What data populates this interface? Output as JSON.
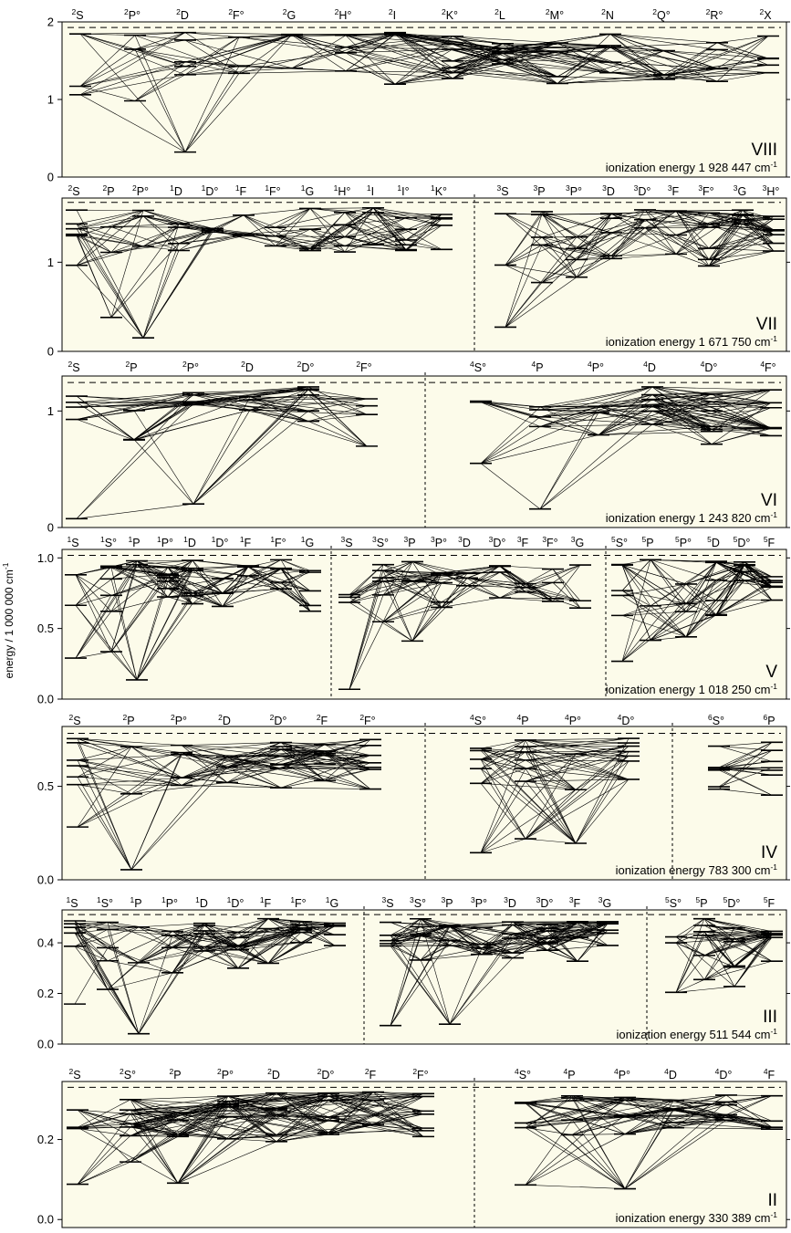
{
  "chart_data": {
    "type": "grotrian_diagram",
    "y_axis_label": "energy / 1 000 000 cm",
    "y_axis_label_sup": "-1",
    "panels": [
      {
        "ion": "VIII",
        "ionization_label": "ionization energy",
        "ionization_value": "1 928 447",
        "ionization_unit": "cm",
        "ionization_unit_sup": "-1",
        "ionization_energy": 1.928447,
        "ylim": [
          0,
          2.0
        ],
        "yticks": [
          0,
          1,
          2
        ],
        "ticklabels": [
          "0",
          "1",
          "2"
        ],
        "groups": [
          {
            "terms": [
              {
                "m": "2",
                "l": "S"
              },
              {
                "m": "2",
                "l": "P°"
              },
              {
                "m": "2",
                "l": "D"
              },
              {
                "m": "2",
                "l": "F°"
              },
              {
                "m": "2",
                "l": "G"
              },
              {
                "m": "2",
                "l": "H°"
              },
              {
                "m": "2",
                "l": "I"
              },
              {
                "m": "2",
                "l": "K°"
              },
              {
                "m": "2",
                "l": "L"
              },
              {
                "m": "2",
                "l": "M°"
              },
              {
                "m": "2",
                "l": "N"
              },
              {
                "m": "2",
                "l": "Q°"
              },
              {
                "m": "2",
                "l": "R°"
              },
              {
                "m": "2",
                "l": "X"
              }
            ]
          }
        ]
      },
      {
        "ion": "VII",
        "ionization_label": "ionization energy",
        "ionization_value": "1 671 750",
        "ionization_unit": "cm",
        "ionization_unit_sup": "-1",
        "ionization_energy": 1.67175,
        "ylim": [
          0,
          1.72
        ],
        "yticks": [
          0,
          1
        ],
        "ticklabels": [
          "0",
          "1"
        ],
        "groups": [
          {
            "terms": [
              {
                "m": "2",
                "l": "S"
              },
              {
                "m": "2",
                "l": "P"
              },
              {
                "m": "2",
                "l": "P°"
              },
              {
                "m": "1",
                "l": "D"
              },
              {
                "m": "1",
                "l": "D°"
              },
              {
                "m": "1",
                "l": "F"
              },
              {
                "m": "1",
                "l": "F°"
              },
              {
                "m": "1",
                "l": "G"
              },
              {
                "m": "1",
                "l": "H°"
              },
              {
                "m": "1",
                "l": "I"
              },
              {
                "m": "1",
                "l": "I°"
              },
              {
                "m": "1",
                "l": "K°"
              }
            ]
          },
          {
            "terms": [
              {
                "m": "3",
                "l": "S"
              },
              {
                "m": "3",
                "l": "P"
              },
              {
                "m": "3",
                "l": "P°"
              },
              {
                "m": "3",
                "l": "D"
              },
              {
                "m": "3",
                "l": "D°"
              },
              {
                "m": "3",
                "l": "F"
              },
              {
                "m": "3",
                "l": "F°"
              },
              {
                "m": "3",
                "l": "G"
              },
              {
                "m": "3",
                "l": "H°"
              }
            ]
          }
        ]
      },
      {
        "ion": "VI",
        "ionization_label": "ionization energy",
        "ionization_value": "1 243 820",
        "ionization_unit": "cm",
        "ionization_unit_sup": "-1",
        "ionization_energy": 1.24382,
        "ylim": [
          0,
          1.3
        ],
        "yticks": [
          0,
          1
        ],
        "ticklabels": [
          "0",
          "1"
        ],
        "groups": [
          {
            "terms": [
              {
                "m": "2",
                "l": "S"
              },
              {
                "m": "2",
                "l": "P"
              },
              {
                "m": "2",
                "l": "P°"
              },
              {
                "m": "2",
                "l": "D"
              },
              {
                "m": "2",
                "l": "D°"
              },
              {
                "m": "2",
                "l": "F°"
              }
            ]
          },
          {
            "terms": [
              {
                "m": "4",
                "l": "S°"
              },
              {
                "m": "4",
                "l": "P"
              },
              {
                "m": "4",
                "l": "P°"
              },
              {
                "m": "4",
                "l": "D"
              },
              {
                "m": "4",
                "l": "D°"
              },
              {
                "m": "4",
                "l": "F°"
              }
            ]
          }
        ]
      },
      {
        "ion": "V",
        "ionization_label": "ionization energy",
        "ionization_value": "1 018 250",
        "ionization_unit": "cm",
        "ionization_unit_sup": "-1",
        "ionization_energy": 1.01825,
        "ylim": [
          0,
          1.06
        ],
        "yticks": [
          0,
          0.5,
          1.0
        ],
        "ticklabels": [
          "0.0",
          "0.5",
          "1.0"
        ],
        "groups": [
          {
            "terms": [
              {
                "m": "1",
                "l": "S"
              },
              {
                "m": "1",
                "l": "S°"
              },
              {
                "m": "1",
                "l": "P"
              },
              {
                "m": "1",
                "l": "P°"
              },
              {
                "m": "1",
                "l": "D"
              },
              {
                "m": "1",
                "l": "D°"
              },
              {
                "m": "1",
                "l": "F"
              },
              {
                "m": "1",
                "l": "F°"
              },
              {
                "m": "1",
                "l": "G"
              }
            ]
          },
          {
            "terms": [
              {
                "m": "3",
                "l": "S"
              },
              {
                "m": "3",
                "l": "S°"
              },
              {
                "m": "3",
                "l": "P"
              },
              {
                "m": "3",
                "l": "P°"
              },
              {
                "m": "3",
                "l": "D"
              },
              {
                "m": "3",
                "l": "D°"
              },
              {
                "m": "3",
                "l": "F"
              },
              {
                "m": "3",
                "l": "F°"
              },
              {
                "m": "3",
                "l": "G"
              }
            ]
          },
          {
            "terms": [
              {
                "m": "5",
                "l": "S°"
              },
              {
                "m": "5",
                "l": "P"
              },
              {
                "m": "5",
                "l": "P°"
              },
              {
                "m": "5",
                "l": "D"
              },
              {
                "m": "5",
                "l": "D°"
              },
              {
                "m": "5",
                "l": "F"
              }
            ]
          }
        ]
      },
      {
        "ion": "IV",
        "ionization_label": "ionization energy",
        "ionization_value": "783 300",
        "ionization_unit": "cm",
        "ionization_unit_sup": "-1",
        "ionization_energy": 0.7833,
        "ylim": [
          0,
          0.82
        ],
        "yticks": [
          0,
          0.5
        ],
        "ticklabels": [
          "0.0",
          "0.5"
        ],
        "groups": [
          {
            "terms": [
              {
                "m": "2",
                "l": "S"
              },
              {
                "m": "2",
                "l": "P"
              },
              {
                "m": "2",
                "l": "P°"
              },
              {
                "m": "2",
                "l": "D"
              },
              {
                "m": "2",
                "l": "D°"
              },
              {
                "m": "2",
                "l": "F"
              },
              {
                "m": "2",
                "l": "F°"
              }
            ]
          },
          {
            "terms": [
              {
                "m": "4",
                "l": "S°"
              },
              {
                "m": "4",
                "l": "P"
              },
              {
                "m": "4",
                "l": "P°"
              },
              {
                "m": "4",
                "l": "D°"
              }
            ]
          },
          {
            "terms": [
              {
                "m": "6",
                "l": "S°"
              },
              {
                "m": "6",
                "l": "P"
              }
            ]
          }
        ]
      },
      {
        "ion": "III",
        "ionization_label": "ionization energy",
        "ionization_value": "511 544",
        "ionization_unit": "cm",
        "ionization_unit_sup": "-1",
        "ionization_energy": 0.511544,
        "ylim": [
          0,
          0.53
        ],
        "yticks": [
          0,
          0.2,
          0.4
        ],
        "ticklabels": [
          "0.0",
          "0.2",
          "0.4"
        ],
        "groups": [
          {
            "terms": [
              {
                "m": "1",
                "l": "S"
              },
              {
                "m": "1",
                "l": "S°"
              },
              {
                "m": "1",
                "l": "P"
              },
              {
                "m": "1",
                "l": "P°"
              },
              {
                "m": "1",
                "l": "D"
              },
              {
                "m": "1",
                "l": "D°"
              },
              {
                "m": "1",
                "l": "F"
              },
              {
                "m": "1",
                "l": "F°"
              },
              {
                "m": "1",
                "l": "G"
              }
            ]
          },
          {
            "terms": [
              {
                "m": "3",
                "l": "S"
              },
              {
                "m": "3",
                "l": "S°"
              },
              {
                "m": "3",
                "l": "P"
              },
              {
                "m": "3",
                "l": "P°"
              },
              {
                "m": "3",
                "l": "D"
              },
              {
                "m": "3",
                "l": "D°"
              },
              {
                "m": "3",
                "l": "F"
              },
              {
                "m": "3",
                "l": "G"
              }
            ]
          },
          {
            "terms": [
              {
                "m": "5",
                "l": "S°"
              },
              {
                "m": "5",
                "l": "P"
              },
              {
                "m": "5",
                "l": "D°"
              },
              {
                "m": "5",
                "l": "F"
              }
            ]
          }
        ]
      },
      {
        "ion": "II",
        "ionization_label": "ionization energy",
        "ionization_value": "330 389",
        "ionization_unit": "cm",
        "ionization_unit_sup": "-1",
        "ionization_energy": 0.330389,
        "ylim": [
          -0.02,
          0.345
        ],
        "yticks": [
          0,
          0.2
        ],
        "ticklabels": [
          "0.0",
          "0.2"
        ],
        "groups": [
          {
            "terms": [
              {
                "m": "2",
                "l": "S"
              },
              {
                "m": "2",
                "l": "S°"
              },
              {
                "m": "2",
                "l": "P"
              },
              {
                "m": "2",
                "l": "P°"
              },
              {
                "m": "2",
                "l": "D"
              },
              {
                "m": "2",
                "l": "D°"
              },
              {
                "m": "2",
                "l": "F"
              },
              {
                "m": "2",
                "l": "F°"
              }
            ]
          },
          {
            "terms": [
              {
                "m": "4",
                "l": "S°"
              },
              {
                "m": "4",
                "l": "P"
              },
              {
                "m": "4",
                "l": "P°"
              },
              {
                "m": "4",
                "l": "D"
              },
              {
                "m": "4",
                "l": "D°"
              },
              {
                "m": "4",
                "l": "F"
              }
            ]
          }
        ]
      }
    ]
  }
}
